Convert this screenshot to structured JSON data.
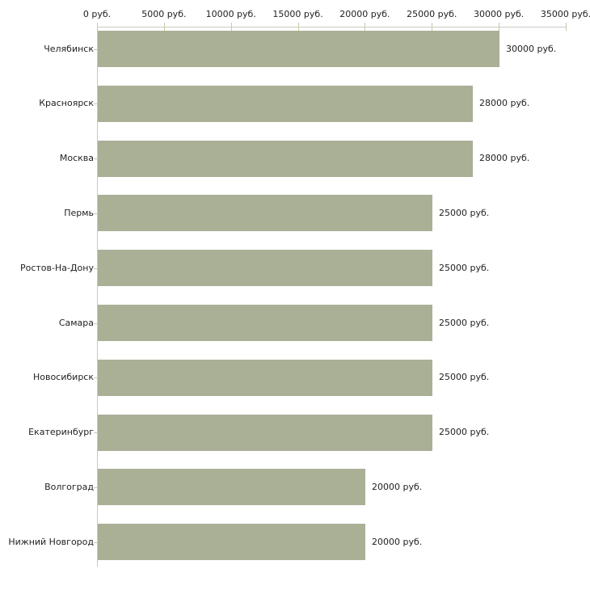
{
  "chart_data": {
    "type": "bar",
    "orientation": "horizontal",
    "title": "",
    "xlabel": "",
    "ylabel": "",
    "xlim": [
      0,
      35000
    ],
    "grid": false,
    "legend": "none",
    "axis_position": "top",
    "x_ticks": [
      {
        "value": 0,
        "label": "0 руб."
      },
      {
        "value": 5000,
        "label": "5000 руб."
      },
      {
        "value": 10000,
        "label": "10000 руб."
      },
      {
        "value": 15000,
        "label": "15000 руб."
      },
      {
        "value": 20000,
        "label": "20000 руб."
      },
      {
        "value": 25000,
        "label": "25000 руб."
      },
      {
        "value": 30000,
        "label": "30000 руб."
      },
      {
        "value": 35000,
        "label": "35000 руб."
      }
    ],
    "categories": [
      "Челябинск",
      "Красноярск",
      "Москва",
      "Пермь",
      "Ростов-На-Дону",
      "Самара",
      "Новосибирск",
      "Екатеринбург",
      "Волгоград",
      "Нижний Новгород"
    ],
    "values": [
      30000,
      28000,
      28000,
      25000,
      25000,
      25000,
      25000,
      25000,
      20000,
      20000
    ],
    "value_labels": [
      "30000 руб.",
      "28000 руб.",
      "28000 руб.",
      "25000 руб.",
      "25000 руб.",
      "25000 руб.",
      "25000 руб.",
      "25000 руб.",
      "20000 руб.",
      "20000 руб."
    ],
    "colors": {
      "bar": "#a9b096",
      "axis_line": "#c8c8c6",
      "tick_mark": "#cfc9a0",
      "text": "#222222",
      "background": "#ffffff"
    }
  }
}
